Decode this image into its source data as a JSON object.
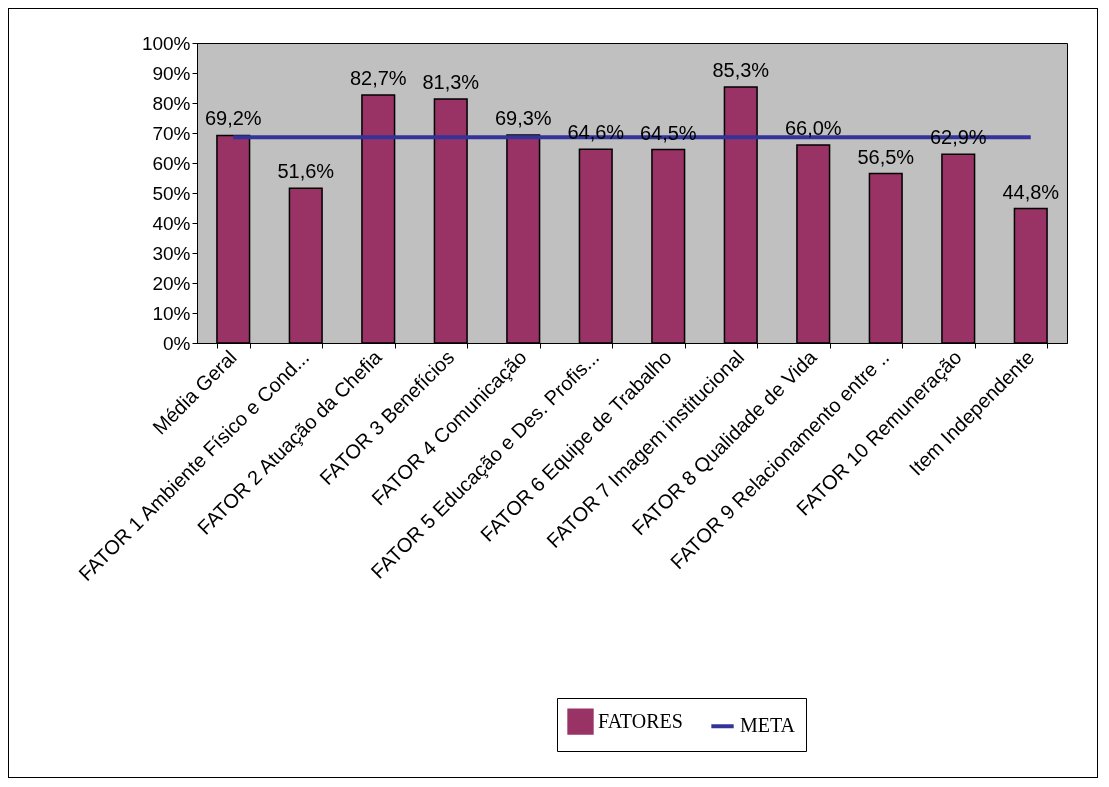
{
  "chart_data": {
    "type": "bar",
    "categories": [
      "Média Geral",
      "FATOR 1 Ambiente Físico e Cond...",
      "FATOR 2 Atuação da Chefia",
      "FATOR 3 Benefícios",
      "FATOR 4 Comunicação",
      "FATOR 5 Educação e Des. Profis...",
      "FATOR 6 Equipe de Trabalho",
      "FATOR 7 Imagem institucional",
      "FATOR 8 Qualidade de Vida",
      "FATOR 9 Relacionamento entre ..",
      "FATOR 10 Remuneração",
      "Item Independente"
    ],
    "series": [
      {
        "name": "FATORES",
        "color": "#993366",
        "values": [
          69.2,
          51.6,
          82.7,
          81.3,
          69.3,
          64.6,
          64.5,
          85.3,
          66.0,
          56.5,
          62.9,
          44.8
        ],
        "value_labels": [
          "69,2%",
          "51,6%",
          "82,7%",
          "81,3%",
          "69,3%",
          "64,6%",
          "64,5%",
          "85,3%",
          "66,0%",
          "56,5%",
          "62,9%",
          "44,8%"
        ]
      },
      {
        "name": "META",
        "type": "line",
        "color": "#333399",
        "values": [
          68.6,
          68.6,
          68.6,
          68.6,
          68.6,
          68.6,
          68.6,
          68.6,
          68.6,
          68.6,
          68.6,
          68.6
        ]
      }
    ],
    "ylim": [
      0,
      100
    ],
    "yticks": [
      {
        "value": 0,
        "label": "0%"
      },
      {
        "value": 10,
        "label": "10%"
      },
      {
        "value": 20,
        "label": "20%"
      },
      {
        "value": 30,
        "label": "30%"
      },
      {
        "value": 40,
        "label": "40%"
      },
      {
        "value": 50,
        "label": "50%"
      },
      {
        "value": 60,
        "label": "60%"
      },
      {
        "value": 70,
        "label": "70%"
      },
      {
        "value": 80,
        "label": "80%"
      },
      {
        "value": 90,
        "label": "90%"
      },
      {
        "value": 100,
        "label": "100%"
      }
    ],
    "legend": "bottom"
  }
}
